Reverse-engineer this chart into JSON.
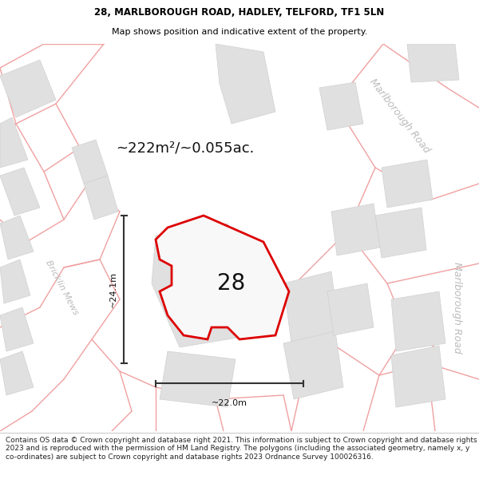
{
  "title_line1": "28, MARLBOROUGH ROAD, HADLEY, TELFORD, TF1 5LN",
  "title_line2": "Map shows position and indicative extent of the property.",
  "property_number": "28",
  "area_text": "~222m²/~0.055ac.",
  "dim_width": "~22.0m",
  "dim_height": "~24.1m",
  "footer_text": "Contains OS data © Crown copyright and database right 2021. This information is subject to Crown copyright and database rights 2023 and is reproduced with the permission of HM Land Registry. The polygons (including the associated geometry, namely x, y co-ordinates) are subject to Crown copyright and database rights 2023 Ordnance Survey 100026316.",
  "bg_color": "#ffffff",
  "map_bg": "#f5f5f5",
  "plot_outline_color": "#dd0000",
  "road_label_color": "#bbbbbb",
  "building_fill": "#e0e0e0",
  "building_edge": "#d0d0d0",
  "road_stroke": "#f0a0a0",
  "dim_line_color": "#333333",
  "title_fontsize": 8.5,
  "footer_fontsize": 6.5,
  "area_fontsize": 13,
  "property_number_fontsize": 20,
  "dim_fontsize": 8,
  "road_label_fontsize": 9
}
